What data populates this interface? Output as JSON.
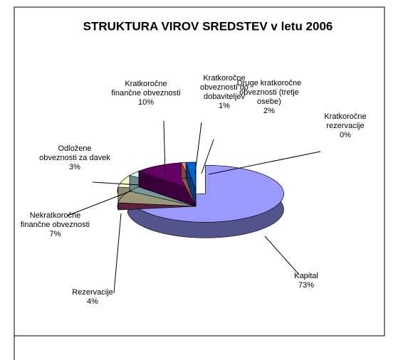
{
  "chart_data": {
    "type": "pie3d",
    "title": "STRUKTURA VIROV SREDSTEV v letu 2006",
    "categories": [
      "Kapital",
      "Rezervacije",
      "Nekratkoročne finančne obveznosti",
      "Odložene obveznosti za davek",
      "Kratkoročne finančne obveznosti",
      "Kratkoročne obveznosti do dobaviteljev",
      "Druge kratkoročne obveznosti (tretje osebe)",
      "Kratkoročne rezervacije"
    ],
    "values": [
      73,
      4,
      7,
      3,
      10,
      1,
      2,
      0
    ],
    "value_labels": [
      "73%",
      "4%",
      "7%",
      "3%",
      "10%",
      "1%",
      "2%",
      "0%"
    ],
    "colors": [
      "#9999ff",
      "#993366",
      "#ffffcc",
      "#ccffff",
      "#660066",
      "#ff8080",
      "#0066cc",
      "#ccccff"
    ],
    "exploded": [
      0
    ]
  }
}
